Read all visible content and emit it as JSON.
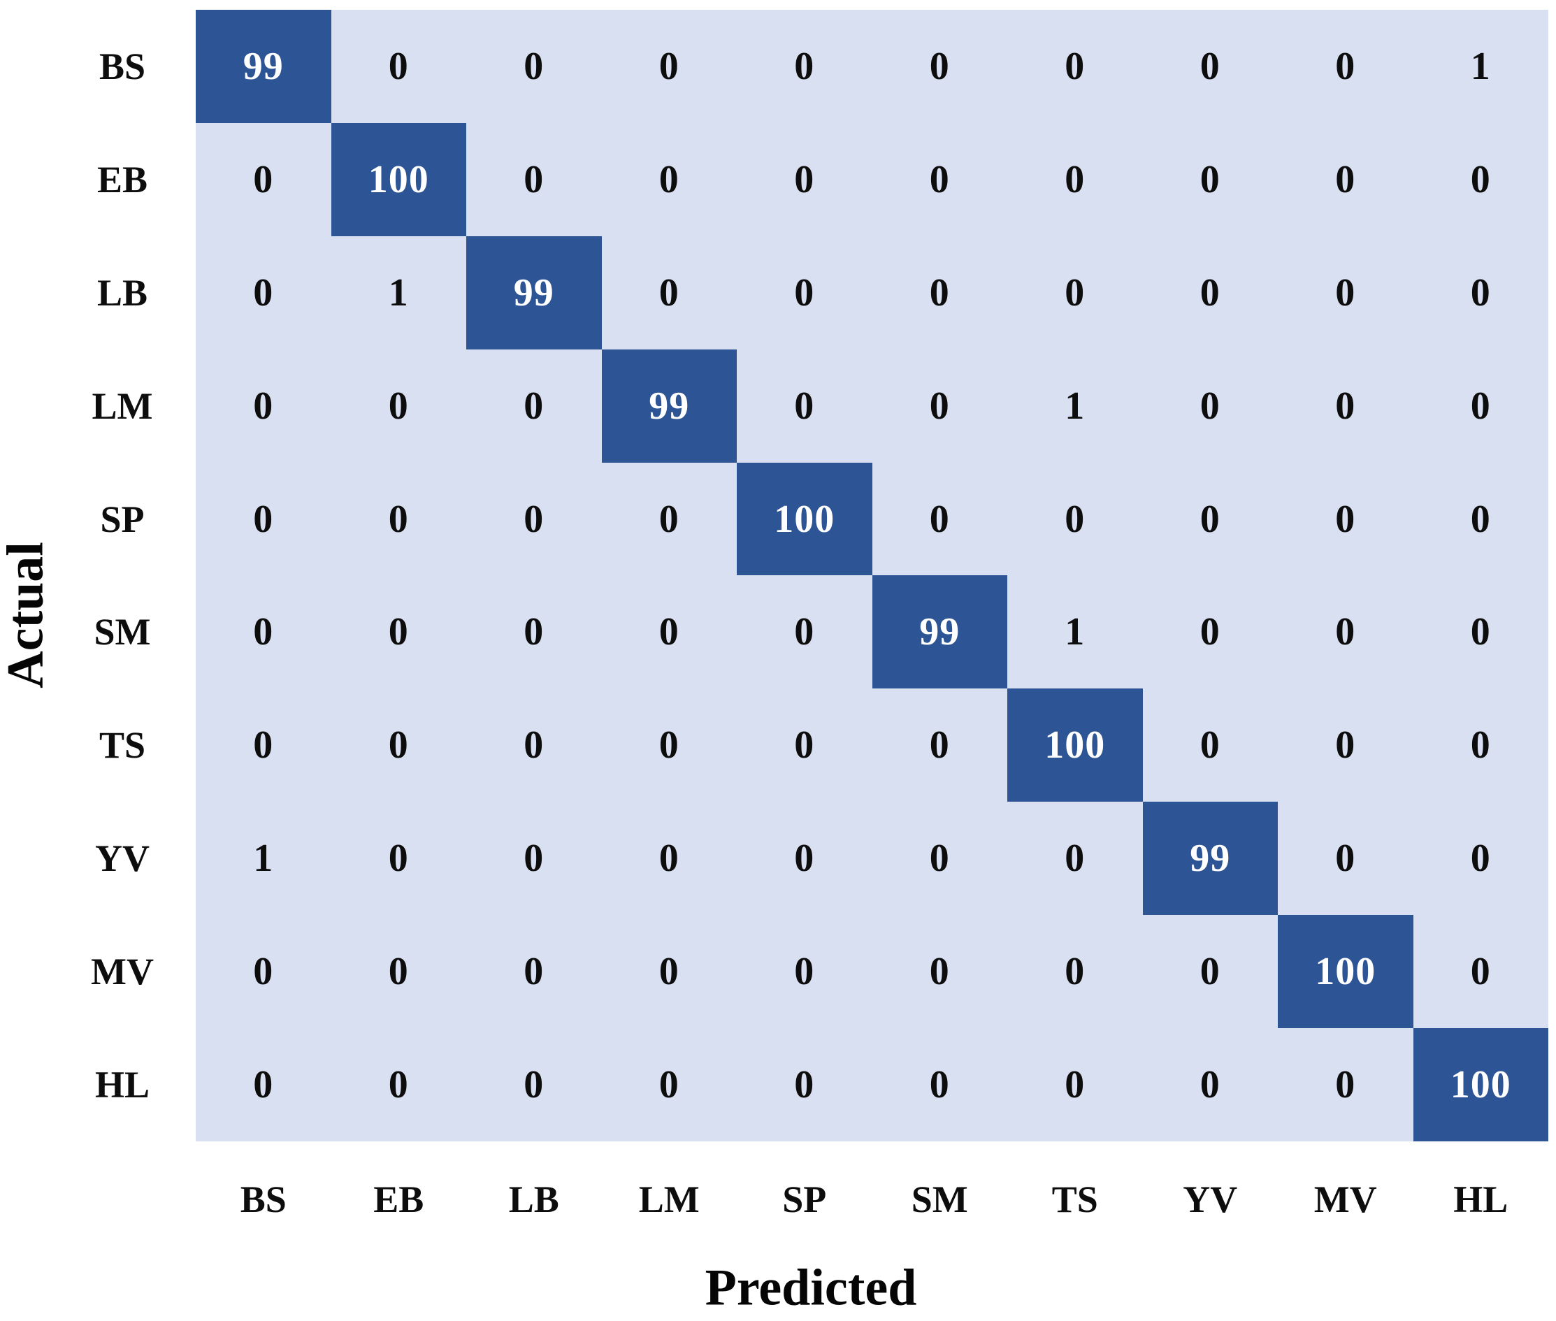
{
  "chart_data": {
    "type": "heatmap",
    "subtype": "confusion-matrix",
    "xlabel": "Predicted",
    "ylabel": "Actual",
    "categories": [
      "BS",
      "EB",
      "LB",
      "LM",
      "SP",
      "SM",
      "TS",
      "YV",
      "MV",
      "HL"
    ],
    "rows": [
      "BS",
      "EB",
      "LB",
      "LM",
      "SP",
      "SM",
      "TS",
      "YV",
      "MV",
      "HL"
    ],
    "matrix": [
      [
        99,
        0,
        0,
        0,
        0,
        0,
        0,
        0,
        0,
        1
      ],
      [
        0,
        100,
        0,
        0,
        0,
        0,
        0,
        0,
        0,
        0
      ],
      [
        0,
        1,
        99,
        0,
        0,
        0,
        0,
        0,
        0,
        0
      ],
      [
        0,
        0,
        0,
        99,
        0,
        0,
        1,
        0,
        0,
        0
      ],
      [
        0,
        0,
        0,
        0,
        100,
        0,
        0,
        0,
        0,
        0
      ],
      [
        0,
        0,
        0,
        0,
        0,
        99,
        1,
        0,
        0,
        0
      ],
      [
        0,
        0,
        0,
        0,
        0,
        0,
        100,
        0,
        0,
        0
      ],
      [
        1,
        0,
        0,
        0,
        0,
        0,
        0,
        99,
        0,
        0
      ],
      [
        0,
        0,
        0,
        0,
        0,
        0,
        0,
        0,
        100,
        0
      ],
      [
        0,
        0,
        0,
        0,
        0,
        0,
        0,
        0,
        0,
        100
      ]
    ],
    "legend": "none",
    "grid": "off",
    "colors": {
      "diagonal_fill": "#2d5494",
      "off_diagonal_fill": "#d9e0f1",
      "diagonal_text": "#ffffff",
      "off_diagonal_text": "#0d0d0d",
      "background": "#ffffff"
    }
  }
}
